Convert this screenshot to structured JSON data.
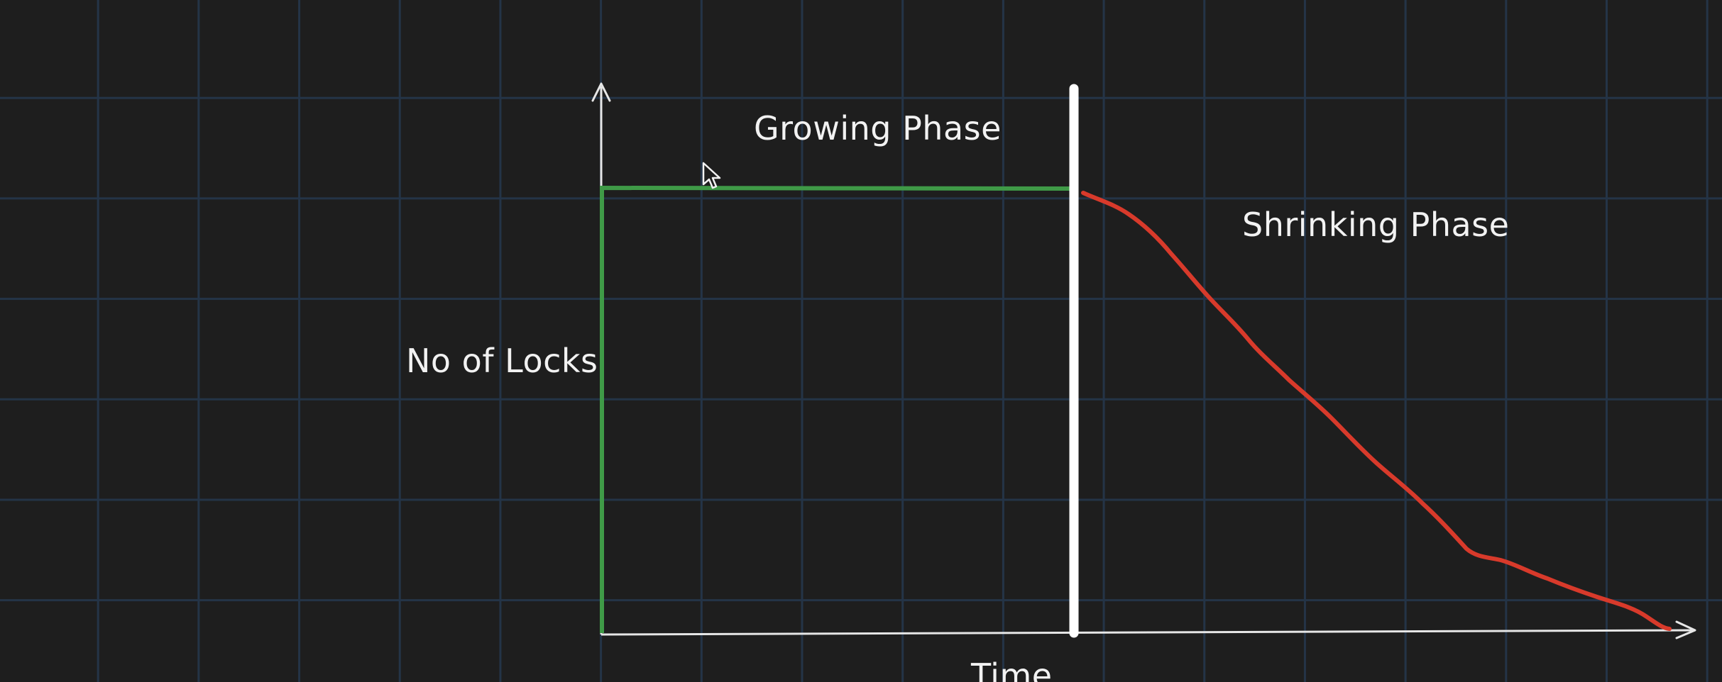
{
  "labels": {
    "growing_phase": "Growing Phase",
    "shrinking_phase": "Shrinking Phase",
    "y_axis": "No of Locks",
    "x_axis": "Time"
  },
  "colors": {
    "background": "#1e1e1e",
    "grid": "#243447",
    "axis": "#e6e6e6",
    "growing_line": "#3f9a47",
    "shrinking_line": "#d83a2b",
    "divider": "#ffffff"
  },
  "icons": {
    "cursor": "mouse-pointer-icon"
  }
}
